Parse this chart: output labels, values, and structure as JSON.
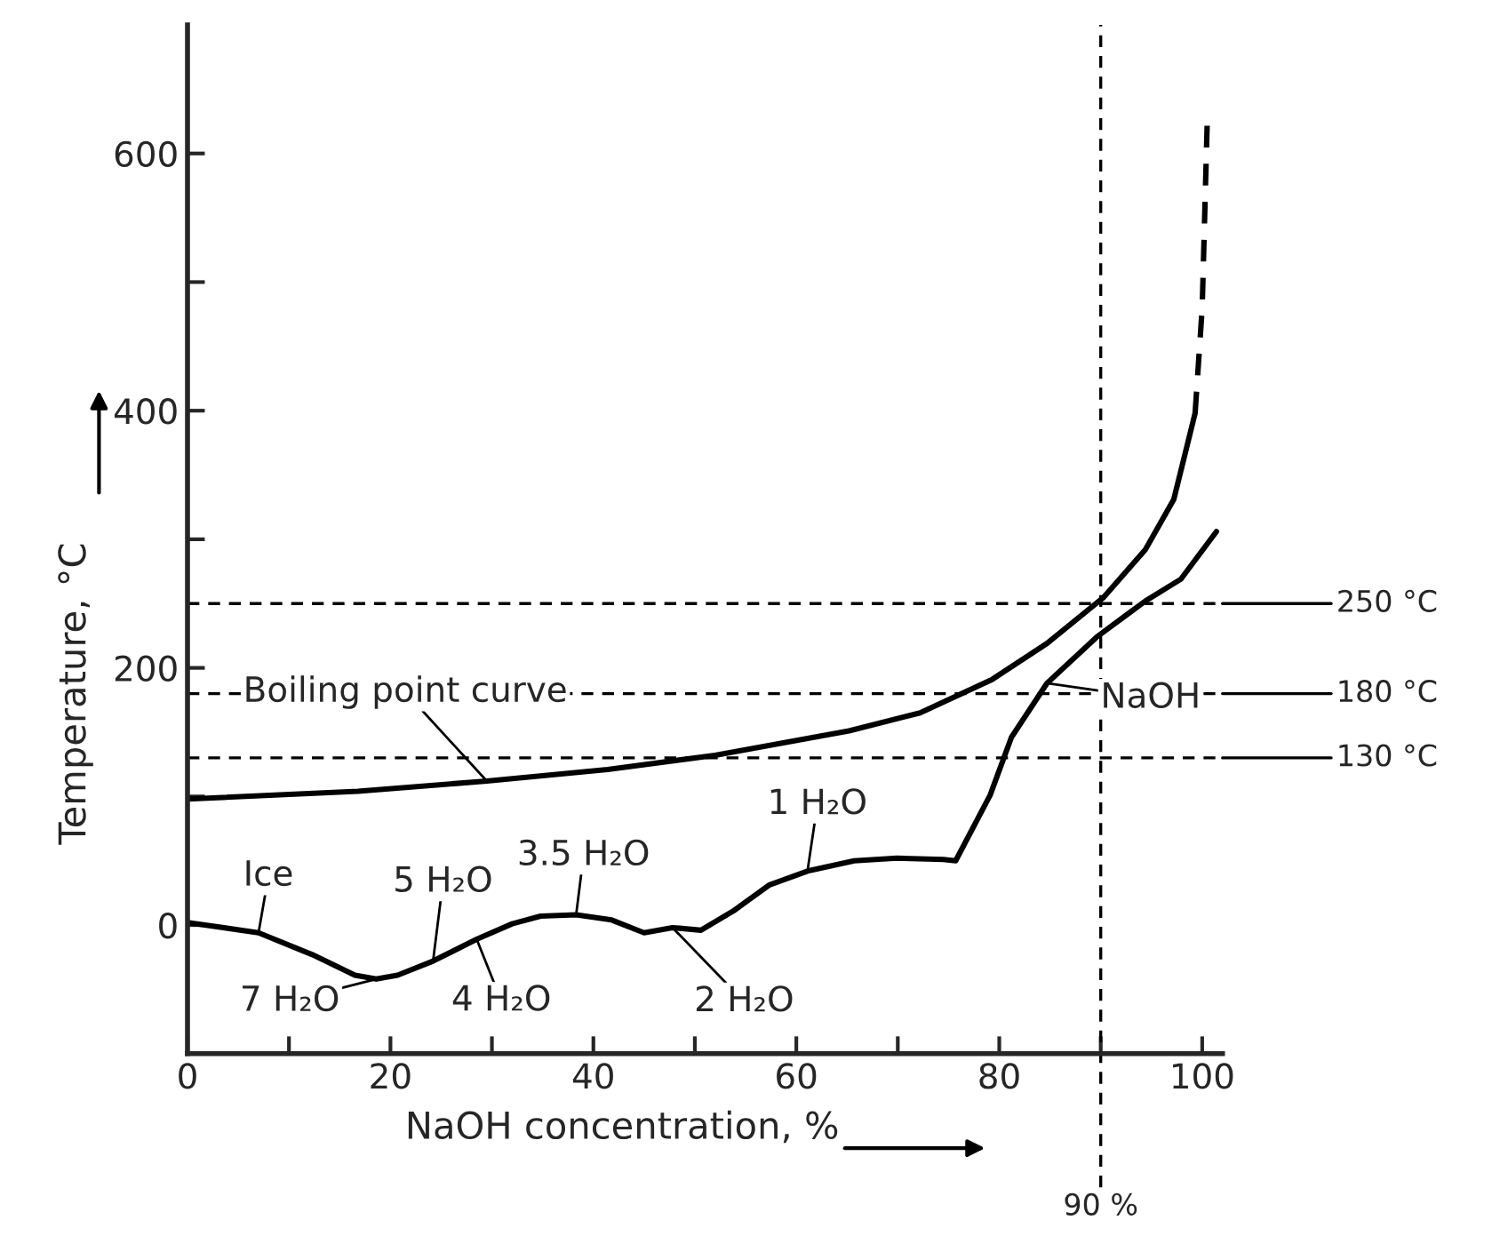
{
  "chart_data": {
    "type": "line",
    "xlabel": "NaOH concentration, %",
    "ylabel": "Temperature, °C",
    "xlim": [
      0,
      102
    ],
    "ylim": [
      -100,
      700
    ],
    "xticks": [
      0,
      {
        "value": 10,
        "label": null
      },
      20,
      {
        "value": 30,
        "label": null
      },
      40,
      {
        "value": 50,
        "label": null
      },
      60,
      {
        "value": 70,
        "label": null
      },
      80,
      {
        "value": 90,
        "label": null
      },
      100
    ],
    "yticks": [
      {
        "value": -100,
        "label": null
      },
      0,
      {
        "value": 100,
        "label": null
      },
      200,
      {
        "value": 300,
        "label": null
      },
      400,
      {
        "value": 500,
        "label": null
      },
      600
    ],
    "grid": false,
    "marker": "none",
    "series": [
      {
        "color": "#000000",
        "line_style": "solid",
        "x": [
          0,
          7,
          12.3,
          16.5,
          18.6,
          20.7,
          24.2,
          28.5,
          32,
          34.8,
          38.3,
          41.8,
          45,
          47.8,
          50.6,
          53.8,
          57.3,
          61.1,
          65.7,
          69.9,
          74.5,
          75.7,
          79.1,
          81.2,
          84.7,
          89.6,
          94.4,
          97.9,
          101.4
        ],
        "values": [
          2,
          -6,
          -23,
          -39,
          -42,
          -39,
          -28,
          -11,
          1,
          7,
          8,
          4,
          -6,
          -2,
          -4,
          11,
          31,
          42,
          50,
          52,
          51,
          50,
          101,
          146,
          188,
          224,
          252,
          269,
          306
        ]
      },
      {
        "color": "#000000",
        "line_style": "solid",
        "x": [
          0,
          16.8,
          29.5,
          41.4,
          52,
          65.2,
          72.2,
          79.3,
          84.7,
          90.3,
          94.4,
          97.2,
          99.3
        ],
        "values": [
          98,
          104,
          112,
          121,
          132,
          151,
          165,
          191,
          219,
          255,
          292,
          331,
          398
        ]
      },
      {
        "color": "#000000",
        "line_style": "dashed",
        "x": [
          99.3,
          100,
          100.5
        ],
        "values": [
          398,
          480,
          626
        ]
      }
    ],
    "ref_lines": [
      {
        "axis": "y",
        "value": 250,
        "label": "250 °C",
        "line_style": "dashed",
        "color": "#000000"
      },
      {
        "axis": "y",
        "value": 180,
        "label": "180 °C",
        "line_style": "dashed",
        "color": "#000000"
      },
      {
        "axis": "y",
        "value": 130,
        "label": "130 °C",
        "line_style": "dashed",
        "color": "#000000"
      },
      {
        "axis": "x",
        "value": 90,
        "label": "90 %",
        "line_style": "dashed",
        "color": "#000000"
      }
    ],
    "annotations": [
      {
        "text": "Boiling point curve",
        "x": 29.5,
        "y": 112
      },
      {
        "text": "Ice",
        "x": 7,
        "y": -6
      },
      {
        "text": "7 H₂O",
        "x": 18.6,
        "y": -42
      },
      {
        "text": "5 H₂O",
        "x": 24.2,
        "y": -28
      },
      {
        "text": "4 H₂O",
        "x": 28.5,
        "y": -11
      },
      {
        "text": "3.5 H₂O",
        "x": 38.3,
        "y": 8
      },
      {
        "text": "2 H₂O",
        "x": 47.8,
        "y": -2
      },
      {
        "text": "1 H₂O",
        "x": 61.1,
        "y": 42
      },
      {
        "text": "NaOH",
        "x": 84.7,
        "y": 188
      }
    ]
  }
}
